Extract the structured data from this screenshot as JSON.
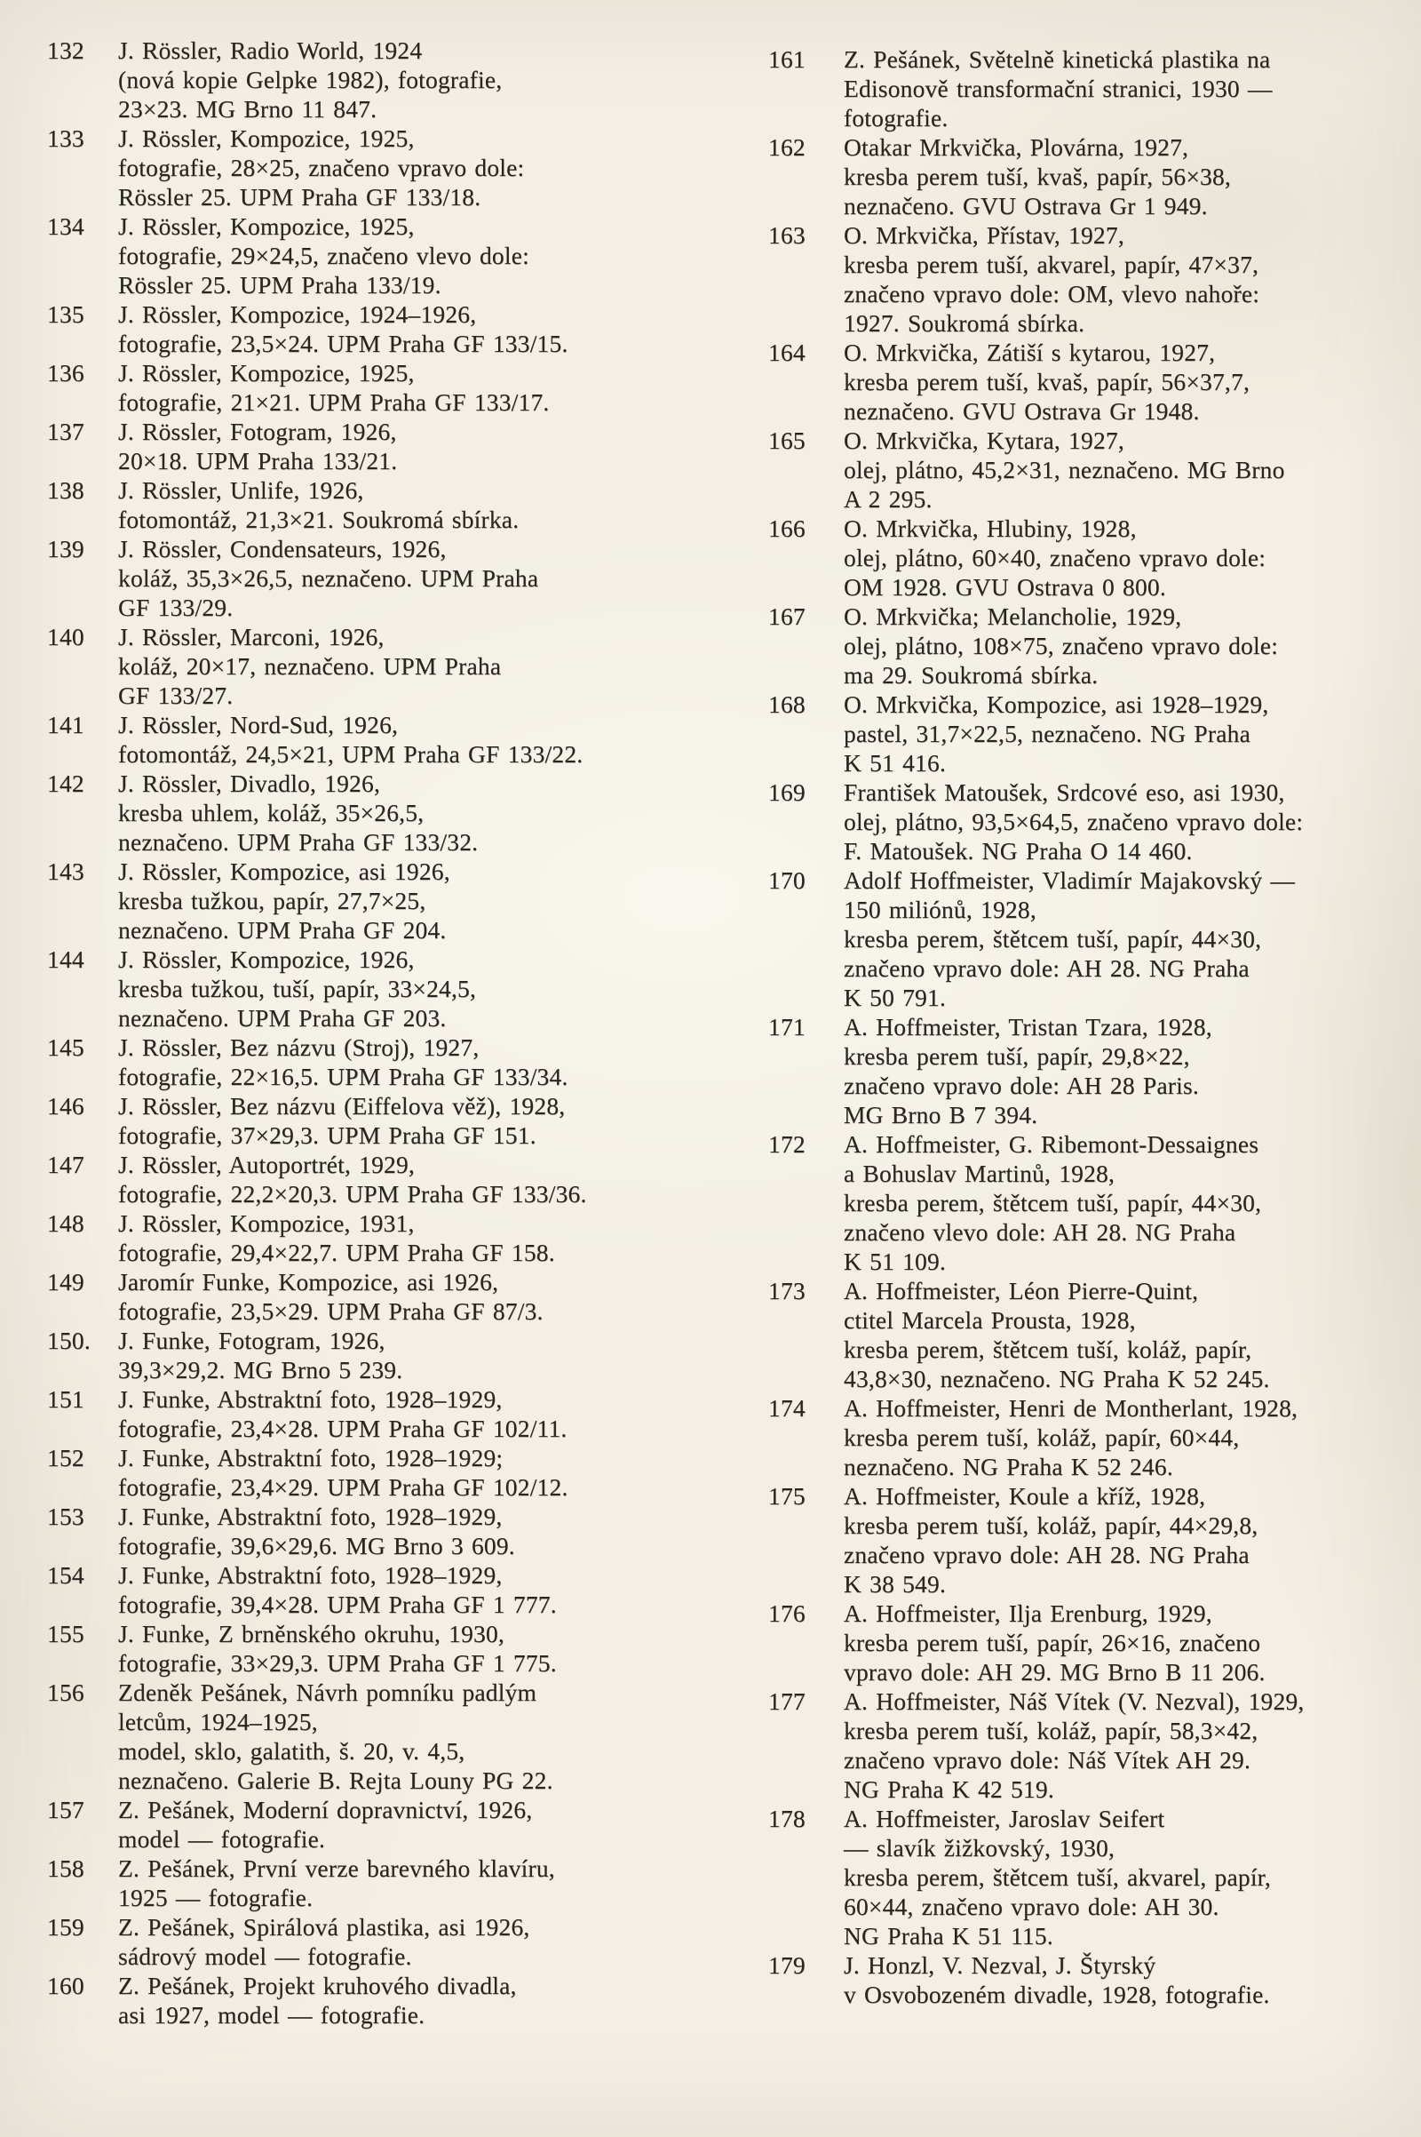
{
  "page": {
    "background": "#f3efe5",
    "ink": "#2a2520",
    "kind": "scanned catalog page, two columns, entries 132-179"
  },
  "columns": {
    "left": [
      {
        "num": "132",
        "text": "J. Rössler, Radio World, 1924\n(nová kopie Gelpke 1982), fotografie,\n23×23. MG Brno 11 847."
      },
      {
        "num": "133",
        "text": "J. Rössler, Kompozice, 1925,\nfotografie, 28×25, značeno vpravo dole:\nRössler 25. UPM Praha GF 133/18."
      },
      {
        "num": "134",
        "text": "J. Rössler, Kompozice, 1925,\nfotografie, 29×24,5, značeno vlevo dole:\nRössler 25. UPM Praha 133/19."
      },
      {
        "num": "135",
        "text": "J. Rössler, Kompozice, 1924–1926,\nfotografie, 23,5×24. UPM Praha GF 133/15."
      },
      {
        "num": "136",
        "text": "J. Rössler, Kompozice, 1925,\nfotografie, 21×21. UPM Praha GF 133/17."
      },
      {
        "num": "137",
        "text": "J. Rössler, Fotogram, 1926,\n20×18. UPM Praha 133/21."
      },
      {
        "num": "138",
        "text": "J. Rössler, Unlife, 1926,\nfotomontáž, 21,3×21. Soukromá sbírka."
      },
      {
        "num": "139",
        "text": "J. Rössler, Condensateurs, 1926,\nkoláž, 35,3×26,5, neznačeno. UPM Praha\nGF 133/29."
      },
      {
        "num": "140",
        "text": "J. Rössler, Marconi, 1926,\nkoláž, 20×17, neznačeno. UPM Praha\nGF 133/27."
      },
      {
        "num": "141",
        "text": "J. Rössler, Nord-Sud, 1926,\nfotomontáž, 24,5×21, UPM Praha GF 133/22."
      },
      {
        "num": "142",
        "text": "J. Rössler, Divadlo, 1926,\nkresba uhlem, koláž, 35×26,5,\nneznačeno. UPM Praha GF 133/32."
      },
      {
        "num": "143",
        "text": "J. Rössler, Kompozice, asi 1926,\nkresba tužkou, papír, 27,7×25,\nneznačeno. UPM Praha GF 204."
      },
      {
        "num": "144",
        "text": "J. Rössler, Kompozice, 1926,\nkresba tužkou, tuší, papír, 33×24,5,\nneznačeno. UPM Praha GF 203."
      },
      {
        "num": "145",
        "text": "J. Rössler, Bez názvu (Stroj), 1927,\nfotografie, 22×16,5. UPM Praha GF 133/34."
      },
      {
        "num": "146",
        "text": "J. Rössler, Bez názvu (Eiffelova věž), 1928,\nfotografie, 37×29,3. UPM Praha GF 151."
      },
      {
        "num": "147",
        "text": "J. Rössler, Autoportrét, 1929,\nfotografie, 22,2×20,3. UPM Praha GF 133/36."
      },
      {
        "num": "148",
        "text": "J. Rössler, Kompozice, 1931,\nfotografie, 29,4×22,7. UPM Praha GF 158."
      },
      {
        "num": "149",
        "text": "Jaromír Funke, Kompozice, asi 1926,\nfotografie, 23,5×29. UPM Praha GF 87/3."
      },
      {
        "num": "150.",
        "text": "J. Funke, Fotogram, 1926,\n39,3×29,2. MG Brno 5 239."
      },
      {
        "num": "151",
        "text": "J. Funke, Abstraktní foto, 1928–1929,\nfotografie, 23,4×28. UPM Praha GF 102/11."
      },
      {
        "num": "152",
        "text": "J. Funke, Abstraktní foto, 1928–1929;\nfotografie, 23,4×29. UPM Praha GF 102/12."
      },
      {
        "num": "153",
        "text": "J. Funke, Abstraktní foto, 1928–1929,\nfotografie, 39,6×29,6. MG Brno 3 609."
      },
      {
        "num": "154",
        "text": "J. Funke, Abstraktní foto, 1928–1929,\nfotografie, 39,4×28. UPM Praha GF 1 777."
      },
      {
        "num": "155",
        "text": "J. Funke, Z brněnského okruhu, 1930,\nfotografie, 33×29,3. UPM Praha GF 1 775."
      },
      {
        "num": "156",
        "text": "Zdeněk Pešánek, Návrh pomníku padlým\nletcům, 1924–1925,\nmodel, sklo, galatith, š. 20, v. 4,5,\nneznačeno. Galerie B. Rejta Louny PG 22."
      },
      {
        "num": "157",
        "text": "Z. Pešánek, Moderní dopravnictví, 1926,\nmodel — fotografie."
      },
      {
        "num": "158",
        "text": "Z. Pešánek, První verze barevného klavíru,\n1925 — fotografie."
      },
      {
        "num": "159",
        "text": "Z. Pešánek, Spirálová plastika, asi 1926,\nsádrový model — fotografie."
      },
      {
        "num": "160",
        "text": "Z. Pešánek, Projekt kruhového divadla,\nasi 1927, model — fotografie."
      }
    ],
    "right": [
      {
        "num": "161",
        "text": "Z. Pešánek, Světelně kinetická plastika na\nEdisonově transformační stranici, 1930 —\nfotografie."
      },
      {
        "num": "162",
        "text": "Otakar Mrkvička, Plovárna, 1927,\nkresba perem tuší, kvaš, papír, 56×38,\nneznačeno. GVU Ostrava Gr 1 949."
      },
      {
        "num": "163",
        "text": "O. Mrkvička, Přístav, 1927,\nkresba perem tuší, akvarel, papír, 47×37,\nznačeno vpravo dole: OM, vlevo nahoře:\n1927. Soukromá sbírka."
      },
      {
        "num": "164",
        "text": "O. Mrkvička, Zátiší s kytarou, 1927,\nkresba perem tuší, kvaš, papír, 56×37,7,\nneznačeno. GVU Ostrava Gr 1948."
      },
      {
        "num": "165",
        "text": "O. Mrkvička, Kytara, 1927,\nolej, plátno, 45,2×31, neznačeno. MG Brno\nA 2 295."
      },
      {
        "num": "166",
        "text": "O. Mrkvička, Hlubiny, 1928,\nolej, plátno, 60×40, značeno vpravo dole:\nOM 1928. GVU Ostrava 0 800."
      },
      {
        "num": "167",
        "text": "O. Mrkvička; Melancholie, 1929,\nolej, plátno, 108×75, značeno vpravo dole:\nma 29. Soukromá sbírka."
      },
      {
        "num": "168",
        "text": "O. Mrkvička, Kompozice, asi 1928–1929,\npastel, 31,7×22,5, neznačeno. NG Praha\nK 51 416."
      },
      {
        "num": "169",
        "text": "František Matoušek, Srdcové eso, asi 1930,\nolej, plátno, 93,5×64,5, značeno vpravo dole:\nF. Matoušek. NG Praha O 14 460."
      },
      {
        "num": "170",
        "text": "Adolf Hoffmeister, Vladimír Majakovský —\n150 miliónů, 1928,\nkresba perem, štětcem tuší, papír, 44×30,\nznačeno vpravo dole: AH 28. NG Praha\nK 50 791."
      },
      {
        "num": "171",
        "text": "A. Hoffmeister, Tristan Tzara, 1928,\nkresba perem tuší, papír, 29,8×22,\nznačeno vpravo dole: AH 28 Paris.\nMG Brno B 7 394."
      },
      {
        "num": "172",
        "text": "A. Hoffmeister, G. Ribemont-Dessaignes\na Bohuslav Martinů, 1928,\nkresba perem, štětcem tuší, papír, 44×30,\nznačeno vlevo dole: AH 28. NG Praha\nK 51 109."
      },
      {
        "num": "173",
        "text": "A. Hoffmeister, Léon Pierre-Quint,\nctitel Marcela Prousta, 1928,\nkresba perem, štětcem tuší, koláž, papír,\n43,8×30, neznačeno. NG Praha K 52 245."
      },
      {
        "num": "174",
        "text": "A. Hoffmeister, Henri de Montherlant, 1928,\nkresba perem tuší, koláž, papír, 60×44,\nneznačeno. NG Praha K 52 246."
      },
      {
        "num": "175",
        "text": "A. Hoffmeister, Koule a kříž, 1928,\nkresba perem tuší, koláž, papír, 44×29,8,\nznačeno vpravo dole: AH 28. NG Praha\nK 38 549."
      },
      {
        "num": "176",
        "text": "A. Hoffmeister, Ilja Erenburg, 1929,\nkresba perem tuší, papír, 26×16, značeno\nvpravo dole: AH 29. MG Brno B 11 206."
      },
      {
        "num": "177",
        "text": "A. Hoffmeister, Náš Vítek (V. Nezval), 1929,\nkresba perem tuší, koláž, papír, 58,3×42,\nznačeno vpravo dole: Náš Vítek AH 29.\nNG Praha K 42 519."
      },
      {
        "num": "178",
        "text": "A. Hoffmeister, Jaroslav Seifert\n— slavík žižkovský, 1930,\nkresba perem, štětcem tuší, akvarel, papír,\n60×44, značeno vpravo dole: AH 30.\nNG Praha K 51 115."
      },
      {
        "num": "179",
        "text": "J. Honzl, V. Nezval, J. Štyrský\nv Osvobozeném divadle, 1928, fotografie."
      }
    ]
  }
}
